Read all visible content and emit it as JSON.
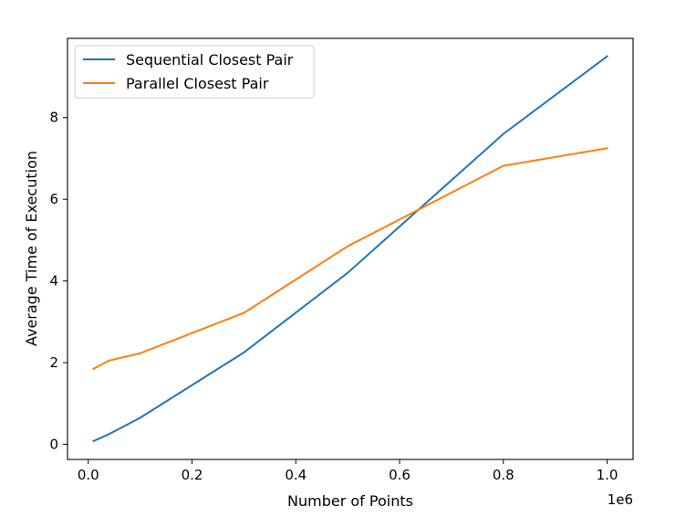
{
  "chart_data": {
    "type": "line",
    "title": "",
    "xlabel": "Number of Points",
    "ylabel": "Average Time of Execution",
    "x_offset_label": "1e6",
    "xlim": [
      -0.04,
      1.05
    ],
    "ylim": [
      -0.37,
      9.94
    ],
    "x_ticks": [
      0.0,
      0.2,
      0.4,
      0.6,
      0.8,
      1.0
    ],
    "x_tick_labels": [
      "0.0",
      "0.2",
      "0.4",
      "0.6",
      "0.8",
      "1.0"
    ],
    "y_ticks": [
      0,
      2,
      4,
      6,
      8
    ],
    "y_tick_labels": [
      "0",
      "2",
      "4",
      "6",
      "8"
    ],
    "grid": false,
    "legend_position": "upper-left",
    "x": [
      0.01,
      0.04,
      0.1,
      0.3,
      0.5,
      0.8,
      1.0
    ],
    "series": [
      {
        "name": "Sequential Closest Pair",
        "color": "#1f77b4",
        "values": [
          0.08,
          0.25,
          0.65,
          2.25,
          4.2,
          7.6,
          9.5
        ]
      },
      {
        "name": "Parallel Closest Pair",
        "color": "#ff7f0e",
        "values": [
          1.85,
          2.05,
          2.23,
          3.22,
          4.85,
          6.82,
          7.25
        ]
      }
    ]
  }
}
